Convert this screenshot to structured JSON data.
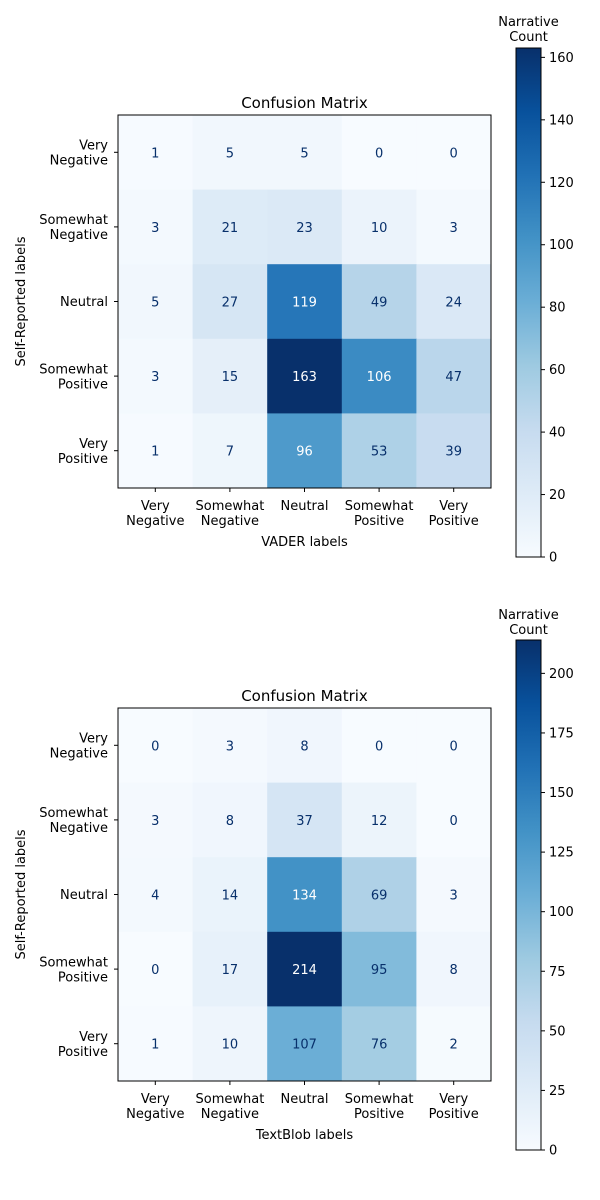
{
  "chart_data": [
    {
      "type": "heatmap",
      "title": "Confusion Matrix",
      "xlabel": "VADER labels",
      "ylabel": "Self-Reported labels",
      "x_categories": [
        [
          "Very",
          "Negative"
        ],
        [
          "Somewhat",
          "Negative"
        ],
        [
          "Neutral"
        ],
        [
          "Somewhat",
          "Positive"
        ],
        [
          "Very",
          "Positive"
        ]
      ],
      "y_categories": [
        [
          "Very",
          "Negative"
        ],
        [
          "Somewhat",
          "Negative"
        ],
        [
          "Neutral"
        ],
        [
          "Somewhat",
          "Positive"
        ],
        [
          "Very",
          "Positive"
        ]
      ],
      "values": [
        [
          1,
          5,
          5,
          0,
          0
        ],
        [
          3,
          21,
          23,
          10,
          3
        ],
        [
          5,
          27,
          119,
          49,
          24
        ],
        [
          3,
          15,
          163,
          106,
          47
        ],
        [
          1,
          7,
          96,
          53,
          39
        ]
      ],
      "colorbar": {
        "title": [
          "Narrative",
          "Count"
        ],
        "min": 0,
        "max": 163,
        "ticks": [
          0,
          20,
          40,
          60,
          80,
          100,
          120,
          140,
          160
        ],
        "colormap": "Blues"
      }
    },
    {
      "type": "heatmap",
      "title": "Confusion Matrix",
      "xlabel": "TextBlob labels",
      "ylabel": "Self-Reported labels",
      "x_categories": [
        [
          "Very",
          "Negative"
        ],
        [
          "Somewhat",
          "Negative"
        ],
        [
          "Neutral"
        ],
        [
          "Somewhat",
          "Positive"
        ],
        [
          "Very",
          "Positive"
        ]
      ],
      "y_categories": [
        [
          "Very",
          "Negative"
        ],
        [
          "Somewhat",
          "Negative"
        ],
        [
          "Neutral"
        ],
        [
          "Somewhat",
          "Positive"
        ],
        [
          "Very",
          "Positive"
        ]
      ],
      "values": [
        [
          0,
          3,
          8,
          0,
          0
        ],
        [
          3,
          8,
          37,
          12,
          0
        ],
        [
          4,
          14,
          134,
          69,
          3
        ],
        [
          0,
          17,
          214,
          95,
          8
        ],
        [
          1,
          10,
          107,
          76,
          2
        ]
      ],
      "colorbar": {
        "title": [
          "Narrative",
          "Count"
        ],
        "min": 0,
        "max": 214,
        "ticks": [
          0,
          25,
          50,
          75,
          100,
          125,
          150,
          175,
          200
        ],
        "colormap": "Blues"
      }
    }
  ]
}
